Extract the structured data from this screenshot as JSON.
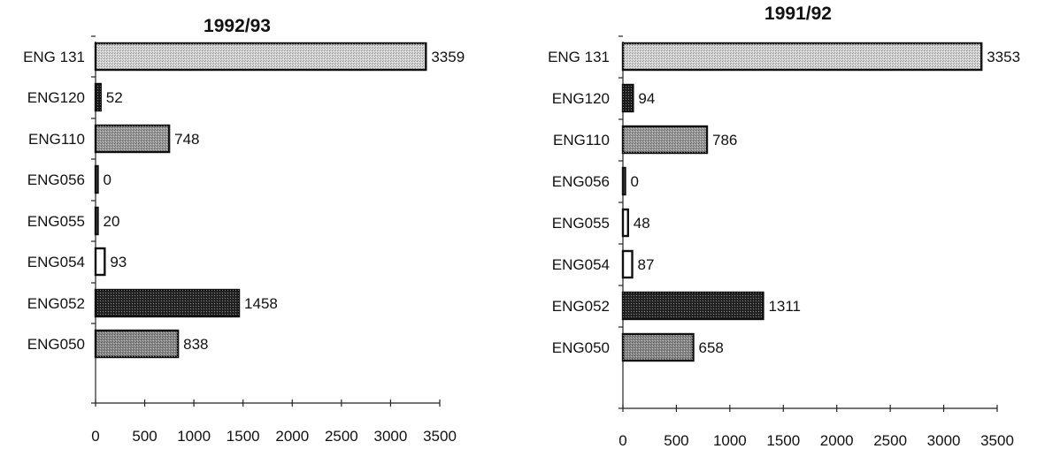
{
  "chart_data": [
    {
      "type": "bar",
      "orientation": "horizontal",
      "title": "1992/93",
      "categories": [
        "ENG 131",
        "ENG120",
        "ENG110",
        "ENG056",
        "ENG055",
        "ENG054",
        "ENG052",
        "ENG050"
      ],
      "values": [
        3359,
        52,
        748,
        0,
        20,
        93,
        1458,
        838
      ],
      "xlim": [
        0,
        3500
      ],
      "xticks": [
        "0",
        "500",
        "1000",
        "1500",
        "2000",
        "2500",
        "3000",
        "3500"
      ],
      "grid": false,
      "legend": "none"
    },
    {
      "type": "bar",
      "orientation": "horizontal",
      "title": "1991/92",
      "categories": [
        "ENG 131",
        "ENG120",
        "ENG110",
        "ENG056",
        "ENG055",
        "ENG054",
        "ENG052",
        "ENG050"
      ],
      "values": [
        3353,
        94,
        786,
        0,
        48,
        87,
        1311,
        658
      ],
      "xlim": [
        0,
        3500
      ],
      "xticks": [
        "0",
        "500",
        "1000",
        "1500",
        "2000",
        "2500",
        "3000",
        "3500"
      ],
      "grid": false,
      "legend": "none"
    }
  ],
  "bar_colors": [
    "#d6d6d6",
    "#1e1e1e",
    "#9a9a9a",
    "#ffffff",
    "#ffffff",
    "#ffffff",
    "#262626",
    "#8a8a8a"
  ]
}
